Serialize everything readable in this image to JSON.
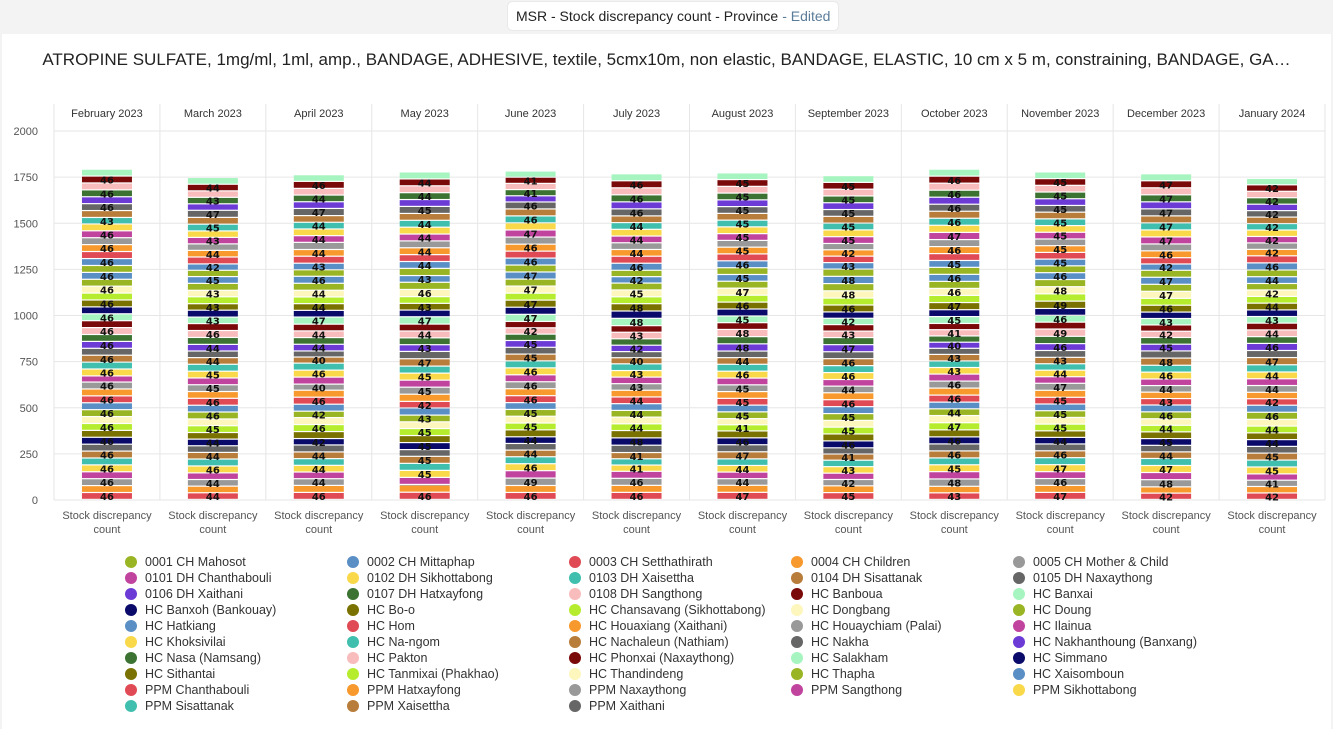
{
  "window": {
    "title": "MSR - Stock discrepancy count - Province",
    "edited_label": "- Edited"
  },
  "chart_data": {
    "type": "bar",
    "stacked": true,
    "title": "ATROPINE SULFATE, 1mg/ml, 1ml, amp., BANDAGE, ADHESIVE, textile, 5cmx10m, non elastic, BANDAGE, ELASTIC, 10 cm x 5 m, constraining, BANDAGE, GA…",
    "columns": [
      "February 2023",
      "March 2023",
      "April 2023",
      "May 2023",
      "June 2023",
      "July 2023",
      "August 2023",
      "September 2023",
      "October 2023",
      "November 2023",
      "December 2023",
      "January 2024"
    ],
    "category_label": "Stock discrepancy count",
    "y_ticks": [
      0,
      250,
      500,
      750,
      1000,
      1250,
      1500,
      1750,
      2000
    ],
    "ylim": [
      0,
      2000
    ],
    "legend_position": "bottom",
    "grid": true,
    "series": [
      {
        "name": "PPM Chanthabouli",
        "color": "#e04a54"
      },
      {
        "name": "PPM Hatxayfong",
        "color": "#f7992c"
      },
      {
        "name": "PPM Naxaythong",
        "color": "#999999"
      },
      {
        "name": "PPM Sangthong",
        "color": "#c0449e"
      },
      {
        "name": "PPM Sikhottabong",
        "color": "#f9d84a"
      },
      {
        "name": "PPM Sisattanak",
        "color": "#40bfae"
      },
      {
        "name": "PPM Xaisettha",
        "color": "#b87d3a"
      },
      {
        "name": "PPM Xaithani",
        "color": "#666666"
      },
      {
        "name": "HC Banxoh (Bankouay)",
        "color": "#0a0a6b"
      },
      {
        "name": "HC Bo-o",
        "color": "#7a7200"
      },
      {
        "name": "HC Chansavang (Sikhottabong)",
        "color": "#b5ec2e"
      },
      {
        "name": "HC Dongbang",
        "color": "#fdf6bd"
      },
      {
        "name": "HC Doung",
        "color": "#9ab524"
      },
      {
        "name": "HC Hatkiang",
        "color": "#5a8fc5"
      },
      {
        "name": "HC Hom",
        "color": "#e04a54"
      },
      {
        "name": "HC Houaxiang (Xaithani)",
        "color": "#f7992c"
      },
      {
        "name": "HC Houaychiam (Palai)",
        "color": "#999999"
      },
      {
        "name": "HC Ilainua",
        "color": "#c0449e"
      },
      {
        "name": "HC Khoksivilai",
        "color": "#f9d84a"
      },
      {
        "name": "HC Na-ngom",
        "color": "#40bfae"
      },
      {
        "name": "HC Nachaleun (Nathiam)",
        "color": "#b87d3a"
      },
      {
        "name": "HC Nakha",
        "color": "#666666"
      },
      {
        "name": "HC Nakhanthoung (Banxang)",
        "color": "#6c3bd6"
      },
      {
        "name": "HC Nasa (Namsang)",
        "color": "#3c7232"
      },
      {
        "name": "HC Pakton",
        "color": "#f8bcbc"
      },
      {
        "name": "HC Phonxai (Naxaythong)",
        "color": "#7a0a0a"
      },
      {
        "name": "HC Salakham",
        "color": "#a6f5c0"
      },
      {
        "name": "HC Simmano",
        "color": "#0a0a6b"
      },
      {
        "name": "HC Sithantai",
        "color": "#7a7200"
      },
      {
        "name": "HC Tanmixai (Phakhao)",
        "color": "#b5ec2e"
      },
      {
        "name": "HC Thandindeng",
        "color": "#fdf6bd"
      },
      {
        "name": "HC Thapha",
        "color": "#9ab524"
      },
      {
        "name": "HC Xaisombou​n",
        "color": "#5a8fc5"
      },
      {
        "name": "0001 CH Mahosot",
        "color": "#9ab524"
      },
      {
        "name": "0002 CH Mittaphap",
        "color": "#5a8fc5"
      },
      {
        "name": "0003 CH Setthathirath",
        "color": "#e04a54"
      },
      {
        "name": "0004 CH Children",
        "color": "#f7992c"
      },
      {
        "name": "0005 CH Mother & Child",
        "color": "#999999"
      },
      {
        "name": "0101 DH Chanthabouli",
        "color": "#c0449e"
      },
      {
        "name": "0102 DH Sikhottabong",
        "color": "#f9d84a"
      },
      {
        "name": "0103 DH Xaisettha",
        "color": "#40bfae"
      },
      {
        "name": "0104 DH Sisattanak",
        "color": "#b87d3a"
      },
      {
        "name": "0105 DH Naxaythong",
        "color": "#666666"
      },
      {
        "name": "0106 DH Xaithani",
        "color": "#6c3bd6"
      },
      {
        "name": "0107 DH Hatxayfong",
        "color": "#3c7232"
      },
      {
        "name": "0108 DH Sangthong",
        "color": "#f8bcbc"
      },
      {
        "name": "HC Banboua",
        "color": "#7a0a0a"
      },
      {
        "name": "HC Banxai",
        "color": "#a6f5c0"
      }
    ],
    "column_values": [
      [
        46,
        46,
        46,
        46,
        46,
        46,
        46,
        46,
        46,
        46,
        46,
        46,
        46,
        46,
        46,
        46,
        46,
        41,
        46,
        46,
        46,
        46,
        46,
        46,
        46,
        46,
        46,
        46,
        46,
        46,
        46,
        46,
        46,
        46,
        46,
        47,
        46,
        46,
        46,
        46,
        43,
        46,
        46,
        46,
        46,
        46,
        46,
        46
      ],
      [
        44,
        44,
        44,
        44,
        46,
        46,
        44,
        44,
        44,
        44,
        45,
        45,
        46,
        45,
        46,
        45,
        45,
        45,
        45,
        46,
        44,
        44,
        44,
        46,
        46,
        46,
        43,
        46,
        43,
        46,
        43,
        46,
        45,
        42,
        42,
        46,
        44,
        43,
        43,
        43,
        45,
        45,
        47,
        43,
        43,
        43,
        44,
        45
      ],
      [
        46,
        46,
        44,
        44,
        44,
        44,
        44,
        46,
        42,
        46,
        46,
        46,
        42,
        46,
        46,
        46,
        40,
        46,
        46,
        46,
        40,
        40,
        44,
        44,
        44,
        44,
        47,
        44,
        44,
        44,
        44,
        46,
        46,
        43,
        43,
        46,
        44,
        47,
        44,
        44,
        44,
        44,
        47,
        44,
        44,
        44,
        46,
        44
      ],
      [
        46,
        46,
        4,
        45,
        45,
        45,
        45,
        43,
        45,
        45,
        45,
        43,
        43,
        46,
        42,
        46,
        45,
        45,
        45,
        45,
        47,
        47,
        43,
        44,
        44,
        44,
        47,
        43,
        43,
        43,
        46,
        46,
        43,
        46,
        44,
        44,
        44,
        44,
        44,
        44,
        44,
        44,
        45,
        44,
        44,
        44,
        44,
        45
      ],
      [
        46,
        46,
        49,
        49,
        46,
        46,
        44,
        44,
        44,
        46,
        45,
        45,
        45,
        45,
        46,
        46,
        46,
        46,
        46,
        46,
        45,
        45,
        45,
        42,
        42,
        42,
        47,
        47,
        47,
        46,
        47,
        46,
        47,
        46,
        46,
        46,
        46,
        47,
        47,
        47,
        46,
        46,
        46,
        41,
        41,
        41,
        41,
        41
      ],
      [
        46,
        46,
        46,
        46,
        41,
        41,
        41,
        48,
        48,
        48,
        44,
        44,
        44,
        44,
        44,
        44,
        43,
        43,
        43,
        44,
        40,
        40,
        42,
        42,
        43,
        43,
        48,
        48,
        48,
        45,
        45,
        45,
        42,
        42,
        46,
        46,
        44,
        44,
        44,
        44,
        44,
        44,
        46,
        46,
        46,
        46,
        46,
        46
      ],
      [
        47,
        47,
        44,
        44,
        44,
        44,
        47,
        47,
        46,
        46,
        41,
        41,
        45,
        45,
        45,
        45,
        45,
        45,
        46,
        46,
        44,
        44,
        48,
        48,
        48,
        45,
        45,
        46,
        46,
        46,
        47,
        46,
        45,
        45,
        46,
        46,
        45,
        45,
        45,
        45,
        45,
        45,
        45,
        45,
        45,
        45,
        45,
        45
      ],
      [
        45,
        45,
        42,
        42,
        43,
        43,
        41,
        41,
        46,
        46,
        45,
        45,
        45,
        46,
        46,
        46,
        44,
        44,
        46,
        46,
        46,
        46,
        47,
        47,
        43,
        43,
        42,
        42,
        46,
        46,
        48,
        48,
        48,
        48,
        43,
        43,
        42,
        42,
        45,
        45,
        45,
        45,
        45,
        45,
        45,
        45,
        45,
        45
      ],
      [
        43,
        43,
        48,
        48,
        45,
        45,
        46,
        46,
        46,
        46,
        47,
        47,
        44,
        44,
        46,
        46,
        46,
        46,
        43,
        43,
        43,
        40,
        40,
        41,
        41,
        41,
        45,
        45,
        47,
        47,
        46,
        46,
        46,
        46,
        45,
        45,
        46,
        46,
        47,
        47,
        46,
        46,
        46,
        46,
        46,
        46,
        46,
        46
      ],
      [
        47,
        47,
        46,
        46,
        47,
        47,
        46,
        46,
        44,
        44,
        45,
        45,
        45,
        45,
        45,
        47,
        47,
        44,
        44,
        43,
        43,
        46,
        46,
        49,
        49,
        46,
        46,
        46,
        49,
        49,
        48,
        48,
        46,
        46,
        45,
        45,
        45,
        45,
        45,
        45,
        45,
        45,
        45,
        45,
        45,
        45,
        45,
        45
      ],
      [
        42,
        42,
        48,
        48,
        47,
        47,
        44,
        44,
        45,
        45,
        44,
        44,
        46,
        46,
        43,
        43,
        44,
        44,
        46,
        46,
        48,
        48,
        45,
        45,
        42,
        42,
        43,
        43,
        46,
        46,
        47,
        47,
        47,
        47,
        42,
        42,
        46,
        46,
        47,
        47,
        47,
        47,
        47,
        47,
        47,
        47,
        47,
        47
      ],
      [
        42,
        42,
        41,
        41,
        45,
        45,
        45,
        44,
        44,
        44,
        44,
        44,
        46,
        46,
        42,
        42,
        44,
        44,
        44,
        47,
        47,
        46,
        46,
        44,
        44,
        44,
        43,
        43,
        44,
        44,
        42,
        42,
        44,
        44,
        46,
        46,
        42,
        42,
        42,
        42,
        42,
        42,
        42,
        42,
        42,
        42,
        42,
        42
      ]
    ],
    "column_totals": [
      1790,
      1745,
      1760,
      1775,
      1780,
      1765,
      1770,
      1755,
      1790,
      1775,
      1765,
      1740
    ],
    "legend_rows": [
      [
        "0001 CH Mahosot",
        "0002 CH Mittaphap",
        "0003 CH Setthathirath",
        "0004 CH Children",
        "0005 CH Mother & Child"
      ],
      [
        "0101 DH Chanthabouli",
        "0102 DH Sikhottabong",
        "0103 DH Xaisettha",
        "0104 DH Sisattanak",
        "0105 DH Naxaythong"
      ],
      [
        "0106 DH Xaithani",
        "0107 DH Hatxayfong",
        "0108 DH Sangthong",
        "HC Banboua",
        "HC Banxai"
      ],
      [
        "HC Banxoh (Bankouay)",
        "HC Bo-o",
        "HC Chansavang (Sikhottabong)",
        "HC Dongbang",
        "HC Doung"
      ],
      [
        "HC Hatkiang",
        "HC Hom",
        "HC Houaxiang (Xaithani)",
        "HC Houaychiam (Palai)",
        "HC Ilainua"
      ],
      [
        "HC Khoksivilai",
        "HC Na-ngom",
        "HC Nachaleun (Nathiam)",
        "HC Nakha",
        "HC Nakhanthoung (Banxang)"
      ],
      [
        "HC Nasa (Namsang)",
        "HC Pakton",
        "HC Phonxai (Naxaythong)",
        "HC Salakham",
        "HC Simmano"
      ],
      [
        "HC Sithantai",
        "HC Tanmixai (Phakhao)",
        "HC Thandindeng",
        "HC Thapha",
        "HC Xaisombou​n"
      ],
      [
        "PPM Chanthabouli",
        "PPM Hatxayfong",
        "PPM Naxaythong",
        "PPM Sangthong",
        "PPM Sikhottabong"
      ],
      [
        "PPM Sisattanak",
        "PPM Xaisettha",
        "PPM Xaithani"
      ]
    ]
  }
}
